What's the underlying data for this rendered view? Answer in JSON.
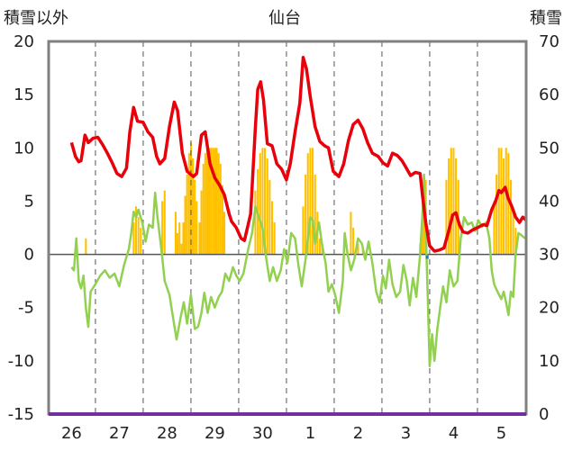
{
  "chart_data": {
    "type": "line",
    "title": "仙台",
    "left_axis_label": "積雪以外",
    "right_axis_label": "積雪",
    "ylim_left": [
      -15,
      20
    ],
    "ylim_right": [
      0,
      70
    ],
    "yticks_left": [
      "-15",
      "-10",
      "-5",
      "0",
      "5",
      "10",
      "15",
      "20"
    ],
    "yticks_right": [
      "0",
      "10",
      "20",
      "30",
      "40",
      "50",
      "60",
      "70"
    ],
    "x_categories": [
      "26",
      "27",
      "28",
      "29",
      "30",
      "1",
      "2",
      "3",
      "4",
      "5"
    ],
    "series_red": [
      [
        0,
        10.5
      ],
      [
        0.08,
        9.2
      ],
      [
        0.15,
        8.7
      ],
      [
        0.2,
        8.8
      ],
      [
        0.28,
        11.2
      ],
      [
        0.35,
        10.5
      ],
      [
        0.45,
        10.9
      ],
      [
        0.55,
        11
      ],
      [
        0.65,
        10.3
      ],
      [
        0.75,
        9.5
      ],
      [
        0.85,
        8.6
      ],
      [
        0.95,
        7.6
      ],
      [
        1.05,
        7.3
      ],
      [
        1.15,
        8.1
      ],
      [
        1.22,
        11.5
      ],
      [
        1.3,
        13.8
      ],
      [
        1.38,
        12.5
      ],
      [
        1.5,
        12.4
      ],
      [
        1.6,
        11.5
      ],
      [
        1.7,
        11
      ],
      [
        1.78,
        9.2
      ],
      [
        1.85,
        8.5
      ],
      [
        1.95,
        9
      ],
      [
        2.05,
        12
      ],
      [
        2.15,
        14.3
      ],
      [
        2.22,
        13.5
      ],
      [
        2.32,
        9.5
      ],
      [
        2.42,
        7.8
      ],
      [
        2.55,
        7.3
      ],
      [
        2.62,
        7.6
      ],
      [
        2.72,
        11.2
      ],
      [
        2.8,
        11.5
      ],
      [
        2.9,
        8.5
      ],
      [
        3.0,
        7.2
      ],
      [
        3.1,
        6.5
      ],
      [
        3.2,
        5.6
      ],
      [
        3.3,
        3.8
      ],
      [
        3.35,
        3.1
      ],
      [
        3.45,
        2.5
      ],
      [
        3.55,
        1.5
      ],
      [
        3.62,
        1.3
      ],
      [
        3.75,
        3.8
      ],
      [
        3.85,
        12
      ],
      [
        3.9,
        15.5
      ],
      [
        3.96,
        16.2
      ],
      [
        4.02,
        14.5
      ],
      [
        4.1,
        10.4
      ],
      [
        4.2,
        10.2
      ],
      [
        4.3,
        8.5
      ],
      [
        4.4,
        8
      ],
      [
        4.5,
        7
      ],
      [
        4.58,
        8.5
      ],
      [
        4.68,
        11.5
      ],
      [
        4.78,
        14.2
      ],
      [
        4.85,
        18.5
      ],
      [
        4.92,
        17.4
      ],
      [
        5.0,
        14.8
      ],
      [
        5.1,
        12
      ],
      [
        5.2,
        10.6
      ],
      [
        5.3,
        10.2
      ],
      [
        5.38,
        10
      ],
      [
        5.48,
        7.8
      ],
      [
        5.6,
        7.3
      ],
      [
        5.7,
        8.5
      ],
      [
        5.8,
        10.7
      ],
      [
        5.9,
        12.2
      ],
      [
        6.0,
        12.6
      ],
      [
        6.1,
        11.8
      ],
      [
        6.2,
        10.5
      ],
      [
        6.3,
        9.5
      ],
      [
        6.42,
        9.2
      ],
      [
        6.52,
        8.6
      ],
      [
        6.62,
        8.3
      ],
      [
        6.72,
        9.5
      ],
      [
        6.82,
        9.3
      ],
      [
        6.92,
        8.8
      ],
      [
        7.0,
        8.2
      ],
      [
        7.1,
        7.4
      ],
      [
        7.2,
        7.7
      ],
      [
        7.3,
        7.6
      ],
      [
        7.35,
        5.5
      ],
      [
        7.42,
        2.9
      ],
      [
        7.5,
        0.8
      ],
      [
        7.6,
        0.3
      ],
      [
        7.7,
        0.4
      ],
      [
        7.8,
        0.6
      ],
      [
        7.9,
        2.2
      ],
      [
        7.98,
        3.7
      ],
      [
        8.05,
        3.9
      ],
      [
        8.12,
        2.8
      ],
      [
        8.2,
        2.1
      ],
      [
        8.3,
        2
      ],
      [
        8.4,
        2.3
      ],
      [
        8.5,
        2.5
      ],
      [
        8.62,
        2.8
      ],
      [
        8.7,
        2.7
      ],
      [
        8.8,
        4.2
      ],
      [
        8.88,
        5
      ],
      [
        8.95,
        6
      ],
      [
        9.0,
        5.8
      ],
      [
        9.08,
        6.3
      ],
      [
        9.15,
        5.2
      ],
      [
        9.22,
        4.5
      ],
      [
        9.3,
        3.5
      ],
      [
        9.38,
        3
      ],
      [
        9.45,
        3.5
      ],
      [
        9.52,
        3.2
      ]
    ],
    "series_green": [
      [
        0,
        -1.2
      ],
      [
        0.05,
        -1.5
      ],
      [
        0.1,
        1.5
      ],
      [
        0.15,
        -2.5
      ],
      [
        0.2,
        -3.2
      ],
      [
        0.25,
        -2
      ],
      [
        0.3,
        -5
      ],
      [
        0.35,
        -6.8
      ],
      [
        0.4,
        -3.5
      ],
      [
        0.5,
        -2.8
      ],
      [
        0.6,
        -2
      ],
      [
        0.7,
        -1.5
      ],
      [
        0.8,
        -2.2
      ],
      [
        0.9,
        -1.8
      ],
      [
        1.0,
        -3
      ],
      [
        1.1,
        -1
      ],
      [
        1.2,
        0.5
      ],
      [
        1.25,
        2
      ],
      [
        1.3,
        4
      ],
      [
        1.35,
        3.5
      ],
      [
        1.4,
        4.2
      ],
      [
        1.48,
        3
      ],
      [
        1.55,
        1.2
      ],
      [
        1.62,
        2.8
      ],
      [
        1.7,
        2.5
      ],
      [
        1.75,
        5.8
      ],
      [
        1.8,
        3.5
      ],
      [
        1.88,
        0.5
      ],
      [
        1.95,
        -2.5
      ],
      [
        2.05,
        -3.8
      ],
      [
        2.12,
        -5.8
      ],
      [
        2.2,
        -8
      ],
      [
        2.28,
        -6
      ],
      [
        2.35,
        -4.5
      ],
      [
        2.42,
        -6.5
      ],
      [
        2.5,
        -3.8
      ],
      [
        2.58,
        -7
      ],
      [
        2.65,
        -6.8
      ],
      [
        2.72,
        -5.5
      ],
      [
        2.78,
        -3.6
      ],
      [
        2.85,
        -5.5
      ],
      [
        2.92,
        -4
      ],
      [
        3.0,
        -5
      ],
      [
        3.08,
        -4
      ],
      [
        3.15,
        -3.5
      ],
      [
        3.22,
        -1.8
      ],
      [
        3.3,
        -2.5
      ],
      [
        3.38,
        -1.2
      ],
      [
        3.45,
        -2
      ],
      [
        3.52,
        -2.5
      ],
      [
        3.6,
        -1.8
      ],
      [
        3.7,
        0.5
      ],
      [
        3.78,
        2
      ],
      [
        3.85,
        4.5
      ],
      [
        3.92,
        3.5
      ],
      [
        4.0,
        2.5
      ],
      [
        4.08,
        -0.5
      ],
      [
        4.15,
        -2.5
      ],
      [
        4.22,
        -1.2
      ],
      [
        4.3,
        -2.5
      ],
      [
        4.38,
        -1.5
      ],
      [
        4.45,
        0.5
      ],
      [
        4.52,
        -0.8
      ],
      [
        4.6,
        2
      ],
      [
        4.68,
        1.5
      ],
      [
        4.75,
        -1
      ],
      [
        4.82,
        -3
      ],
      [
        4.9,
        -0.5
      ],
      [
        4.95,
        1.5
      ],
      [
        5.0,
        3.5
      ],
      [
        5.05,
        3.2
      ],
      [
        5.1,
        1
      ],
      [
        5.18,
        3
      ],
      [
        5.25,
        0.8
      ],
      [
        5.32,
        -0.8
      ],
      [
        5.38,
        -3.5
      ],
      [
        5.45,
        -2.8
      ],
      [
        5.52,
        -3.8
      ],
      [
        5.6,
        -5.5
      ],
      [
        5.68,
        -2.5
      ],
      [
        5.72,
        2
      ],
      [
        5.78,
        0
      ],
      [
        5.85,
        -1.5
      ],
      [
        5.92,
        -0.5
      ],
      [
        6.0,
        1.5
      ],
      [
        6.08,
        1
      ],
      [
        6.15,
        -0.5
      ],
      [
        6.22,
        1.2
      ],
      [
        6.3,
        -0.8
      ],
      [
        6.38,
        -3.5
      ],
      [
        6.45,
        -4.5
      ],
      [
        6.52,
        -2
      ],
      [
        6.58,
        -3.2
      ],
      [
        6.65,
        -0.5
      ],
      [
        6.72,
        -2.8
      ],
      [
        6.8,
        -4
      ],
      [
        6.88,
        -3.5
      ],
      [
        6.95,
        -1
      ],
      [
        7.02,
        -2.5
      ],
      [
        7.08,
        -4.8
      ],
      [
        7.15,
        -2.2
      ],
      [
        7.22,
        -4
      ],
      [
        7.3,
        0
      ],
      [
        7.35,
        4
      ],
      [
        7.38,
        7.5
      ],
      [
        7.42,
        2
      ],
      [
        7.46,
        -4
      ],
      [
        7.5,
        -10.5
      ],
      [
        7.55,
        -7.5
      ],
      [
        7.6,
        -10
      ],
      [
        7.66,
        -7
      ],
      [
        7.72,
        -5
      ],
      [
        7.78,
        -3
      ],
      [
        7.85,
        -4.5
      ],
      [
        7.92,
        -1.5
      ],
      [
        8.0,
        -3
      ],
      [
        8.08,
        -2.5
      ],
      [
        8.15,
        1.5
      ],
      [
        8.22,
        3.5
      ],
      [
        8.3,
        2.8
      ],
      [
        8.38,
        3
      ],
      [
        8.45,
        2.2
      ],
      [
        8.52,
        3.2
      ],
      [
        8.6,
        2.6
      ],
      [
        8.68,
        3
      ],
      [
        8.75,
        1.5
      ],
      [
        8.8,
        -1.5
      ],
      [
        8.85,
        -2.8
      ],
      [
        8.92,
        -3.5
      ],
      [
        9.0,
        -4.2
      ],
      [
        9.05,
        -3.5
      ],
      [
        9.1,
        -4.5
      ],
      [
        9.15,
        -5.7
      ],
      [
        9.2,
        -3.5
      ],
      [
        9.25,
        -4
      ],
      [
        9.3,
        0
      ],
      [
        9.36,
        2
      ],
      [
        9.42,
        1.8
      ],
      [
        9.5,
        1.5
      ]
    ],
    "snow_bars": [
      [
        0.3,
        33
      ],
      [
        0.35,
        30
      ],
      [
        1.3,
        36
      ],
      [
        1.35,
        39
      ],
      [
        1.4,
        37
      ],
      [
        1.45,
        35
      ],
      [
        1.9,
        40
      ],
      [
        1.95,
        42
      ],
      [
        2.18,
        38
      ],
      [
        2.22,
        34
      ],
      [
        2.26,
        36
      ],
      [
        2.3,
        32
      ],
      [
        2.34,
        36
      ],
      [
        2.38,
        41
      ],
      [
        2.42,
        45
      ],
      [
        2.46,
        49
      ],
      [
        2.5,
        51
      ],
      [
        2.54,
        48
      ],
      [
        2.58,
        44
      ],
      [
        2.62,
        40
      ],
      [
        2.68,
        36
      ],
      [
        2.72,
        42
      ],
      [
        2.76,
        47
      ],
      [
        2.8,
        49
      ],
      [
        2.84,
        50
      ],
      [
        2.88,
        50
      ],
      [
        2.92,
        50
      ],
      [
        2.96,
        50
      ],
      [
        3.0,
        50
      ],
      [
        3.04,
        50
      ],
      [
        3.08,
        49
      ],
      [
        3.12,
        47
      ],
      [
        3.16,
        43
      ],
      [
        3.2,
        38
      ],
      [
        3.85,
        42
      ],
      [
        3.9,
        46
      ],
      [
        3.95,
        49
      ],
      [
        4.0,
        50
      ],
      [
        4.05,
        50
      ],
      [
        4.1,
        48
      ],
      [
        4.15,
        44
      ],
      [
        4.2,
        40
      ],
      [
        4.25,
        36
      ],
      [
        4.85,
        39
      ],
      [
        4.9,
        45
      ],
      [
        4.95,
        49
      ],
      [
        5.0,
        50
      ],
      [
        5.05,
        50
      ],
      [
        5.1,
        45
      ],
      [
        5.15,
        38
      ],
      [
        5.2,
        33
      ],
      [
        5.25,
        32
      ],
      [
        5.85,
        38
      ],
      [
        5.9,
        35
      ],
      [
        6.0,
        32
      ],
      [
        6.05,
        30
      ],
      [
        6.1,
        31
      ],
      [
        7.3,
        32
      ],
      [
        7.34,
        36
      ],
      [
        7.38,
        40
      ],
      [
        7.42,
        44
      ],
      [
        7.85,
        44
      ],
      [
        7.9,
        48
      ],
      [
        7.95,
        50
      ],
      [
        8.0,
        50
      ],
      [
        8.05,
        48
      ],
      [
        8.1,
        44
      ],
      [
        8.85,
        40
      ],
      [
        8.9,
        45
      ],
      [
        8.95,
        50
      ],
      [
        9.0,
        50
      ],
      [
        9.05,
        48
      ],
      [
        9.1,
        50
      ],
      [
        9.15,
        49
      ],
      [
        9.2,
        44
      ],
      [
        9.25,
        38
      ],
      [
        9.3,
        35
      ]
    ],
    "colors": {
      "red": "#e8000b",
      "green": "#92d050",
      "snow": "#ffc000",
      "axis": "#808080",
      "baseline": "#7030a0",
      "grid": "#555555",
      "marker": "#2e75b6"
    }
  }
}
